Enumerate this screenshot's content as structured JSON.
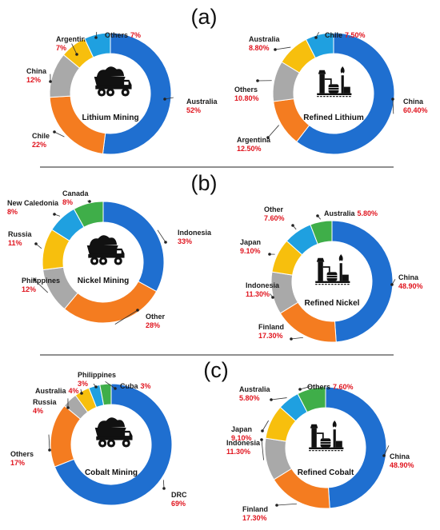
{
  "panels": [
    {
      "letter": "(a)"
    },
    {
      "letter": "(b)"
    },
    {
      "letter": "(c)"
    }
  ],
  "colors": {
    "blue": "#1f6fd0",
    "orange": "#f47c20",
    "gray": "#a9a9a9",
    "yellow": "#f7bf0d",
    "lightblue": "#1fa0e0",
    "green": "#3fae49"
  },
  "chart_data": [
    {
      "type": "pie",
      "title": "Lithium Mining",
      "icon": "mining-truck-icon",
      "slices": [
        {
          "name": "Australia",
          "value": 52,
          "label": "52%",
          "color": "blue"
        },
        {
          "name": "Chile",
          "value": 22,
          "label": "22%",
          "color": "orange"
        },
        {
          "name": "China",
          "value": 12,
          "label": "12%",
          "color": "gray"
        },
        {
          "name": "Argentina",
          "value": 7,
          "label": "7%",
          "color": "yellow"
        },
        {
          "name": "Others",
          "value": 7,
          "label": "7%",
          "color": "lightblue"
        }
      ]
    },
    {
      "type": "pie",
      "title": "Refined Lithium",
      "icon": "refinery-icon",
      "slices": [
        {
          "name": "China",
          "value": 60.4,
          "label": "60.40%",
          "color": "blue"
        },
        {
          "name": "Argentina",
          "value": 12.5,
          "label": "12.50%",
          "color": "orange"
        },
        {
          "name": "Others",
          "value": 10.8,
          "label": "10.80%",
          "color": "gray"
        },
        {
          "name": "Australia",
          "value": 8.8,
          "label": "8.80%",
          "color": "yellow"
        },
        {
          "name": "Chile",
          "value": 7.5,
          "label": "7.50%",
          "color": "lightblue"
        }
      ]
    },
    {
      "type": "pie",
      "title": "Nickel Mining",
      "icon": "mining-truck-icon",
      "slices": [
        {
          "name": "Indonesia",
          "value": 33,
          "label": "33%",
          "color": "blue"
        },
        {
          "name": "Other",
          "value": 28,
          "label": "28%",
          "color": "orange"
        },
        {
          "name": "Philippines",
          "value": 12,
          "label": "12%",
          "color": "gray"
        },
        {
          "name": "Russia",
          "value": 11,
          "label": "11%",
          "color": "yellow"
        },
        {
          "name": "New Caledonia",
          "value": 8,
          "label": "8%",
          "color": "lightblue"
        },
        {
          "name": "Canada",
          "value": 8,
          "label": "8%",
          "color": "green"
        }
      ]
    },
    {
      "type": "pie",
      "title": "Refined Nickel",
      "icon": "refinery-icon",
      "slices": [
        {
          "name": "China",
          "value": 48.9,
          "label": "48.90%",
          "color": "blue"
        },
        {
          "name": "Finland",
          "value": 17.3,
          "label": "17.30%",
          "color": "orange"
        },
        {
          "name": "Indonesia",
          "value": 11.3,
          "label": "11.30%",
          "color": "gray"
        },
        {
          "name": "Japan",
          "value": 9.1,
          "label": "9.10%",
          "color": "yellow"
        },
        {
          "name": "Other",
          "value": 7.6,
          "label": "7.60%",
          "color": "lightblue"
        },
        {
          "name": "Australia",
          "value": 5.8,
          "label": "5.80%",
          "color": "green"
        }
      ]
    },
    {
      "type": "pie",
      "title": "Cobalt Mining",
      "icon": "mining-truck-icon",
      "slices": [
        {
          "name": "DRC",
          "value": 69,
          "label": "69%",
          "color": "blue"
        },
        {
          "name": "Others",
          "value": 17,
          "label": "17%",
          "color": "orange"
        },
        {
          "name": "Russia",
          "value": 4,
          "label": "4%",
          "color": "gray"
        },
        {
          "name": "Australia",
          "value": 4,
          "label": "4%",
          "color": "yellow"
        },
        {
          "name": "Philippines",
          "value": 3,
          "label": "3%",
          "color": "lightblue"
        },
        {
          "name": "Cuba",
          "value": 3,
          "label": "3%",
          "color": "green"
        }
      ]
    },
    {
      "type": "pie",
      "title": "Refined Cobalt",
      "icon": "refinery-icon",
      "slices": [
        {
          "name": "China",
          "value": 48.9,
          "label": "48.90%",
          "color": "blue"
        },
        {
          "name": "Finland",
          "value": 17.3,
          "label": "17.30%",
          "color": "orange"
        },
        {
          "name": "Indonesia",
          "value": 11.3,
          "label": "11.30%",
          "color": "gray"
        },
        {
          "name": "Japan",
          "value": 9.1,
          "label": "9.10%",
          "color": "yellow"
        },
        {
          "name": "Australia",
          "value": 5.8,
          "label": "5.80%",
          "color": "lightblue"
        },
        {
          "name": "Others",
          "value": 7.6,
          "label": "7.60%",
          "color": "green"
        }
      ]
    }
  ]
}
